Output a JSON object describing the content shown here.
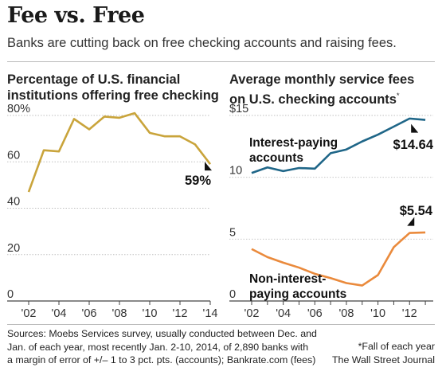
{
  "header": {
    "title": "Fee vs. Free",
    "subtitle": "Banks are cutting back on free checking accounts and raising fees."
  },
  "footer": {
    "sources_line1": "Sources: Moebs Services survey, usually conducted between Dec. and",
    "sources_line2": "Jan. of each year, most recently Jan. 2-10, 2014, of 2,890 banks with",
    "sources_line3": "a margin of error of +/– 1 to 3 pct. pts. (accounts); Bankrate.com (fees)",
    "note": "*Fall of each year",
    "credit": "The Wall Street Journal"
  },
  "colors": {
    "gold": "#c9a43b",
    "blue": "#1f6688",
    "orange": "#ea8a3c",
    "grid": "#bfbfbf"
  },
  "chart_data": [
    {
      "type": "line",
      "title_line1": "Percentage of U.S. financial",
      "title_line2": "institutions offering free checking",
      "x": [
        2002,
        2003,
        2004,
        2005,
        2006,
        2007,
        2008,
        2009,
        2010,
        2011,
        2012,
        2013,
        2014
      ],
      "xticks": [
        2002,
        2004,
        2006,
        2008,
        2010,
        2012,
        2014
      ],
      "xticklabels": [
        "'02",
        "'04",
        "'06",
        "'08",
        "'10",
        "'12",
        "'14"
      ],
      "yticks": [
        0,
        20,
        40,
        60,
        80
      ],
      "yticklabels": [
        "0",
        "20",
        "40",
        "60",
        "80%"
      ],
      "ylim": [
        0,
        80
      ],
      "series": [
        {
          "values": [
            47,
            65,
            64.5,
            78.5,
            74,
            79.5,
            79,
            81,
            72.5,
            71,
            71,
            67.5,
            59
          ],
          "end_label": "59%"
        }
      ]
    },
    {
      "type": "line",
      "title_line1": "Average monthly service fees",
      "title_line2": "on U.S. checking accounts",
      "title_mark": "*",
      "x": [
        2002,
        2003,
        2004,
        2005,
        2006,
        2007,
        2008,
        2009,
        2010,
        2011,
        2012,
        2013
      ],
      "xticks": [
        2002,
        2004,
        2006,
        2008,
        2010,
        2012
      ],
      "xticklabels": [
        "'02",
        "'04",
        "'06",
        "'08",
        "'10",
        "'12"
      ],
      "yticks": [
        0,
        5,
        10,
        15
      ],
      "yticklabels": [
        "0",
        "5",
        "10",
        "$15"
      ],
      "ylim": [
        0,
        15
      ],
      "series": [
        {
          "name_line1": "Interest-paying",
          "name_line2": "accounts",
          "values": [
            10.35,
            10.8,
            10.5,
            10.75,
            10.7,
            11.95,
            12.25,
            12.9,
            13.45,
            14.1,
            14.75,
            14.64
          ],
          "end_label": "$14.64"
        },
        {
          "name_line1": "Non-interest-",
          "name_line2": "paying accounts",
          "values": [
            4.2,
            3.55,
            3.1,
            2.7,
            2.2,
            1.85,
            1.45,
            1.25,
            2.1,
            4.35,
            5.5,
            5.54
          ],
          "end_label": "$5.54"
        }
      ]
    }
  ]
}
